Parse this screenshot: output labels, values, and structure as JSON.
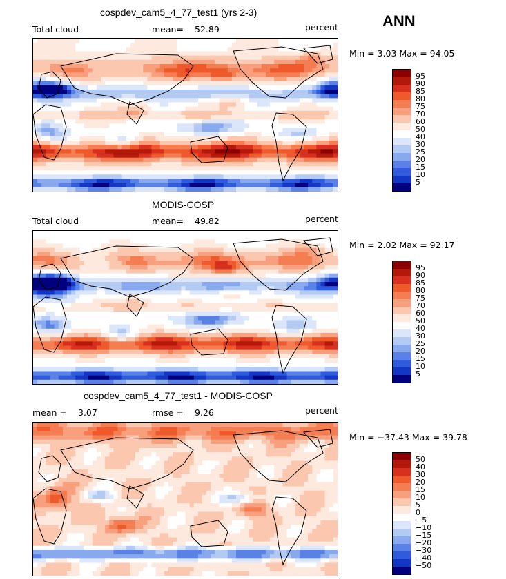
{
  "season": "ANN",
  "panels": [
    {
      "title": "cospdev_cam5_4_77_test1 (yrs 2-3)",
      "left_label": "Total cloud",
      "stat_label": "mean=",
      "stat_value": "52.89",
      "stat2_label": "",
      "stat2_value": "",
      "units": "percent",
      "minmax_text": "Min =    3.03  Max =   94.05",
      "levels": [
        "95",
        "90",
        "85",
        "80",
        "75",
        "70",
        "60",
        "50",
        "40",
        "30",
        "25",
        "20",
        "15",
        "10",
        "5"
      ],
      "colors": [
        "#8b0000",
        "#b3180a",
        "#d7301f",
        "#ef5a2c",
        "#f47d52",
        "#f8a07e",
        "#fbc7ae",
        "#fde9de",
        "#ffffff",
        "#dbe6fa",
        "#b3caf3",
        "#88a9ee",
        "#5a82e6",
        "#2f5bdc",
        "#1436c4",
        "#00007f"
      ]
    },
    {
      "title": "MODIS-COSP",
      "left_label": "Total cloud",
      "stat_label": "mean=",
      "stat_value": "49.82",
      "stat2_label": "",
      "stat2_value": "",
      "units": "percent",
      "minmax_text": "Min =    2.02  Max =   92.17",
      "levels": [
        "95",
        "90",
        "85",
        "80",
        "75",
        "70",
        "60",
        "50",
        "40",
        "30",
        "25",
        "20",
        "15",
        "10",
        "5"
      ],
      "colors": [
        "#8b0000",
        "#b3180a",
        "#d7301f",
        "#ef5a2c",
        "#f47d52",
        "#f8a07e",
        "#fbc7ae",
        "#fde9de",
        "#ffffff",
        "#dbe6fa",
        "#b3caf3",
        "#88a9ee",
        "#5a82e6",
        "#2f5bdc",
        "#1436c4",
        "#00007f"
      ]
    },
    {
      "title": "cospdev_cam5_4_77_test1 - MODIS-COSP",
      "left_label": "",
      "stat_label": "mean =",
      "stat_value": "3.07",
      "stat2_label": "rmse =",
      "stat2_value": "9.26",
      "units": "percent",
      "minmax_text": "Min = −37.43  Max =   39.78",
      "levels": [
        "50",
        "40",
        "30",
        "20",
        "15",
        "10",
        "5",
        "0",
        "−5",
        "−10",
        "−15",
        "−20",
        "−30",
        "−40",
        "−50"
      ],
      "colors": [
        "#8b0000",
        "#b3180a",
        "#d7301f",
        "#ef5a2c",
        "#f47d52",
        "#f8a07e",
        "#fbc7ae",
        "#fde9de",
        "#ffffff",
        "#dbe6fa",
        "#b3caf3",
        "#88a9ee",
        "#5a82e6",
        "#2f5bdc",
        "#1436c4",
        "#00007f"
      ]
    }
  ],
  "chart_data": [
    {
      "type": "heatmap",
      "title": "cospdev_cam5_4_77_test1 (yrs 2-3)",
      "variable": "Total cloud",
      "units": "percent",
      "mean": 52.89,
      "min": 3.03,
      "max": 94.05,
      "contour_levels": [
        5,
        10,
        15,
        20,
        25,
        30,
        40,
        50,
        60,
        70,
        75,
        80,
        85,
        90,
        95
      ]
    },
    {
      "type": "heatmap",
      "title": "MODIS-COSP",
      "variable": "Total cloud",
      "units": "percent",
      "mean": 49.82,
      "min": 2.02,
      "max": 92.17,
      "contour_levels": [
        5,
        10,
        15,
        20,
        25,
        30,
        40,
        50,
        60,
        70,
        75,
        80,
        85,
        90,
        95
      ]
    },
    {
      "type": "heatmap",
      "title": "cospdev_cam5_4_77_test1 - MODIS-COSP",
      "units": "percent",
      "mean": 3.07,
      "rmse": 9.26,
      "min": -37.43,
      "max": 39.78,
      "contour_levels": [
        -50,
        -40,
        -30,
        -20,
        -15,
        -10,
        -5,
        0,
        5,
        10,
        15,
        20,
        30,
        40,
        50
      ]
    }
  ]
}
